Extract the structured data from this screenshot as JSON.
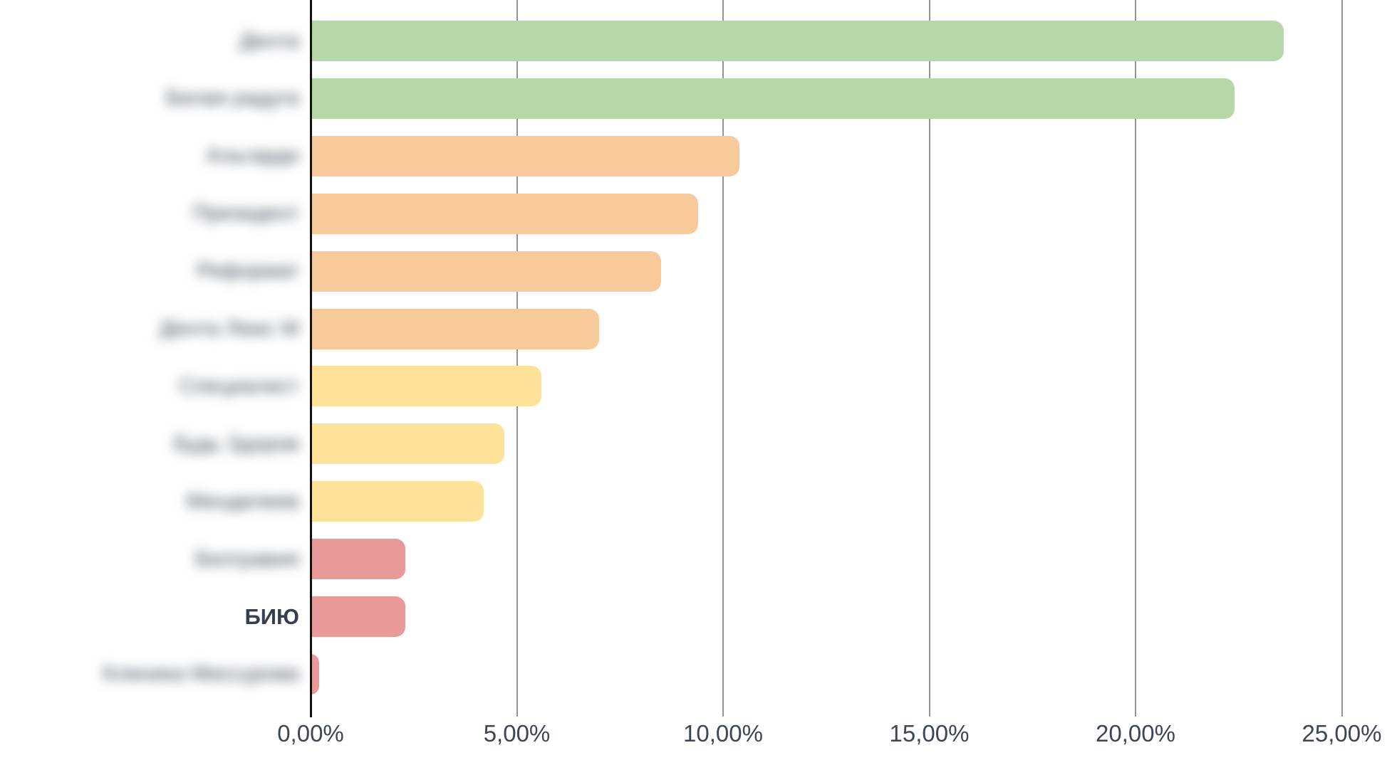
{
  "chart_data": {
    "type": "bar",
    "orientation": "horizontal",
    "title": "",
    "xlabel": "",
    "ylabel": "",
    "categories": [
      "Дента",
      "Белая радуга",
      "Альгарди",
      "Президент",
      "Реформат",
      "Дента Люкс М",
      "Специалист",
      "Будь Здоров",
      "Менделеев",
      "Белгравия",
      "БИЮ",
      "Клиника Миссурова"
    ],
    "values": [
      23.6,
      22.4,
      10.4,
      9.4,
      8.5,
      7.0,
      5.6,
      4.7,
      4.2,
      2.3,
      2.3,
      0.2
    ],
    "bar_colors": [
      "#b6d7a8",
      "#b6d7a8",
      "#f8c99b",
      "#f8c99b",
      "#f8c99b",
      "#f8c99b",
      "#ffe29a",
      "#ffe29a",
      "#ffe29a",
      "#ea9999",
      "#ea9999",
      "#ea9999"
    ],
    "label_blurred": [
      true,
      true,
      true,
      true,
      true,
      true,
      true,
      true,
      true,
      true,
      false,
      true
    ],
    "highlighted_category": "БИЮ",
    "xlim": [
      0,
      26.1
    ],
    "x_ticks": [
      0,
      5,
      10,
      15,
      20,
      25
    ],
    "x_tick_labels": [
      "0,00%",
      "5,00%",
      "10,00%",
      "15,00%",
      "20,00%",
      "25,00%"
    ],
    "grid": true,
    "legend": false,
    "colors": {
      "green": "#b6d7a8",
      "orange": "#f8c99b",
      "yellow": "#ffe29a",
      "red": "#ea9999",
      "gridline": "#949494",
      "axis": "#111111",
      "text": "#3d4654"
    }
  }
}
